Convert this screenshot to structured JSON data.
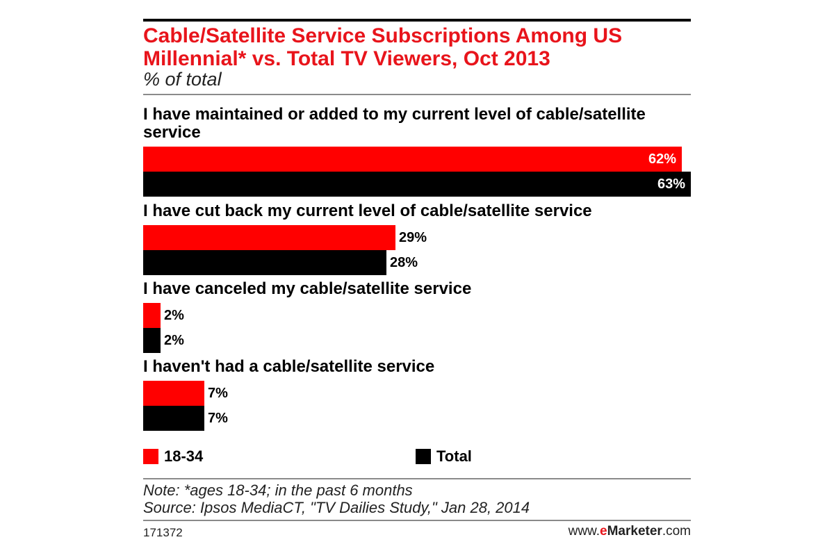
{
  "chart_data": {
    "type": "bar",
    "orientation": "horizontal",
    "title": "Cable/Satellite Service Subscriptions Among US Millennial* vs. Total TV Viewers, Oct 2013",
    "subtitle": "% of total",
    "categories": [
      "I have maintained or added to my current level of cable/satellite service",
      "I have cut back my current level of cable/satellite service",
      "I have canceled my cable/satellite service",
      "I haven't had a cable/satellite service"
    ],
    "series": [
      {
        "name": "18-34",
        "color": "#ff0000",
        "values": [
          62,
          29,
          2,
          7
        ],
        "labels": [
          "62%",
          "29%",
          "2%",
          "7%"
        ]
      },
      {
        "name": "Total",
        "color": "#000000",
        "values": [
          63,
          28,
          2,
          7
        ],
        "labels": [
          "63%",
          "28%",
          "2%",
          "7%"
        ]
      }
    ],
    "xlim": [
      0,
      63
    ],
    "unit": "%",
    "grid": false,
    "legend_position": "bottom"
  },
  "footer": {
    "note": "Note: *ages 18-34; in the past 6 months",
    "source": "Source: Ipsos MediaCT, \"TV Dailies Study,\" Jan 28, 2014",
    "chart_id": "171372",
    "brand_prefix": "www.",
    "brand_e": "e",
    "brand_marketer": "Marketer",
    "brand_suffix": ".com"
  }
}
